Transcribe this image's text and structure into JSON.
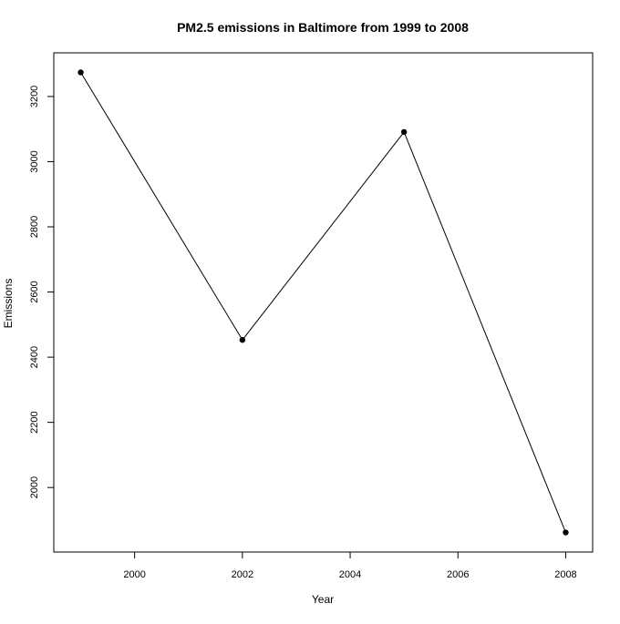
{
  "chart_data": {
    "type": "line",
    "title": "PM2.5 emissions in Baltimore from 1999 to 2008",
    "xlabel": "Year",
    "ylabel": "Emissions",
    "x": [
      1999,
      2002,
      2005,
      2008
    ],
    "series": [
      {
        "values": [
          3274,
          2453,
          3091,
          1862
        ]
      }
    ],
    "xlim": [
      1998.5,
      2008.5
    ],
    "ylim": [
      1802,
      3334
    ],
    "xticks": [
      2000,
      2002,
      2004,
      2006,
      2008
    ],
    "xtick_labels": [
      "2000",
      "2002",
      "2004",
      "2006",
      "2008"
    ],
    "yticks": [
      2000,
      2200,
      2400,
      2600,
      2800,
      3000,
      3200
    ],
    "ytick_labels": [
      "2000",
      "2200",
      "2400",
      "2600",
      "2800",
      "3000",
      "3200"
    ],
    "grid": false,
    "legend": "none",
    "markers": true,
    "colors": {
      "line": "#000000",
      "marker": "#000000",
      "axis": "#000000",
      "background": "#ffffff"
    }
  }
}
